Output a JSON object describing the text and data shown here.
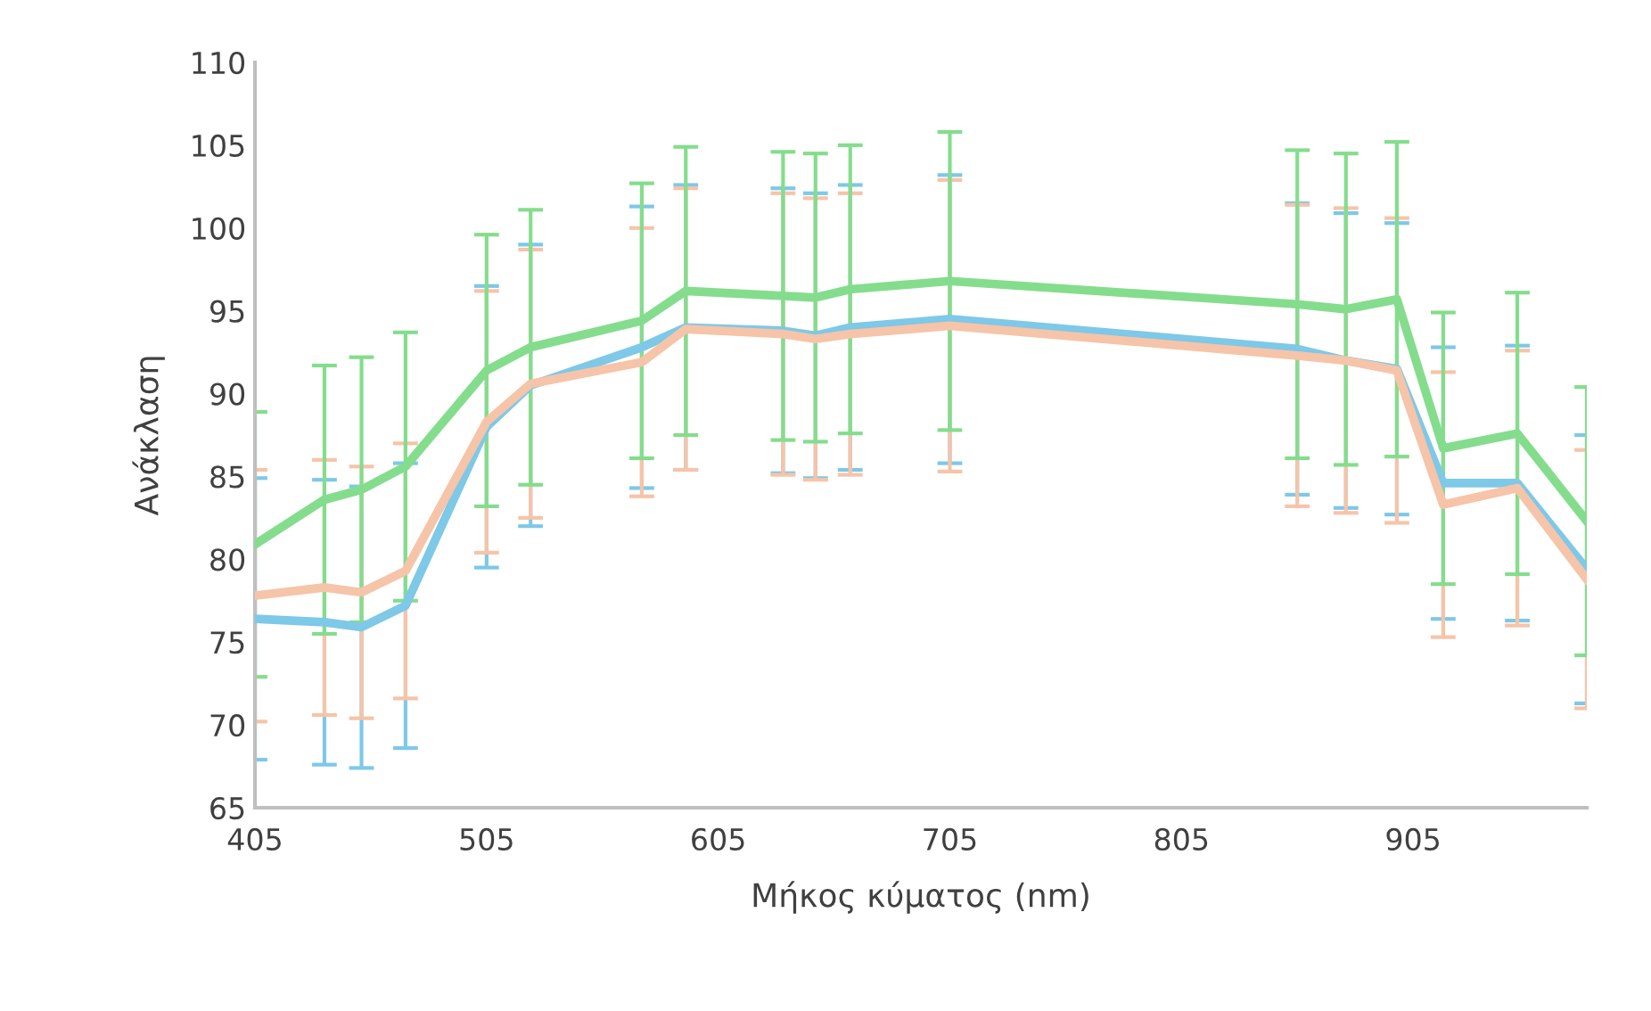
{
  "chart_data": {
    "type": "line",
    "xlabel": "Μήκος κύματος (nm)",
    "ylabel": "Ανάκλαση",
    "x": [
      405,
      435,
      451,
      470,
      505,
      524,
      572,
      591,
      633,
      647,
      662,
      705,
      855,
      876,
      898,
      918,
      950,
      980
    ],
    "xlim": [
      405,
      980
    ],
    "xticks": [
      405,
      505,
      605,
      705,
      805,
      905
    ],
    "ylim": [
      65,
      110
    ],
    "yticks": [
      65,
      70,
      75,
      80,
      85,
      90,
      95,
      100,
      105,
      110
    ],
    "grid": false,
    "legend": false,
    "marker": "none",
    "line_style": "solid",
    "series": [
      {
        "color": "#7ec8e8",
        "values": [
          76.4,
          76.2,
          75.9,
          77.2,
          88.0,
          90.5,
          92.8,
          94.0,
          93.8,
          93.5,
          94.0,
          94.5,
          92.7,
          92.0,
          91.5,
          84.6,
          84.6,
          79.4
        ],
        "errors": [
          8.5,
          8.6,
          8.5,
          8.6,
          8.5,
          8.5,
          8.5,
          8.6,
          8.6,
          8.6,
          8.6,
          8.7,
          8.8,
          8.9,
          8.8,
          8.2,
          8.3,
          8.1
        ]
      },
      {
        "color": "#f6c4a8",
        "values": [
          77.8,
          78.3,
          78.0,
          79.3,
          88.3,
          90.6,
          91.9,
          93.9,
          93.6,
          93.3,
          93.6,
          94.1,
          92.3,
          92.0,
          91.4,
          83.3,
          84.3,
          78.8
        ],
        "errors": [
          7.6,
          7.7,
          7.6,
          7.7,
          7.9,
          8.1,
          8.1,
          8.5,
          8.5,
          8.5,
          8.5,
          8.8,
          9.1,
          9.2,
          9.2,
          8.0,
          8.3,
          7.8
        ]
      },
      {
        "color": "#84dd8c",
        "values": [
          80.9,
          83.6,
          84.2,
          85.6,
          91.4,
          92.8,
          94.4,
          96.2,
          95.9,
          95.8,
          96.3,
          96.8,
          95.4,
          95.1,
          95.7,
          86.7,
          87.6,
          82.3
        ],
        "errors": [
          8.0,
          8.1,
          8.0,
          8.1,
          8.2,
          8.3,
          8.3,
          8.7,
          8.7,
          8.7,
          8.7,
          9.0,
          9.3,
          9.4,
          9.5,
          8.2,
          8.5,
          8.1
        ]
      }
    ]
  }
}
